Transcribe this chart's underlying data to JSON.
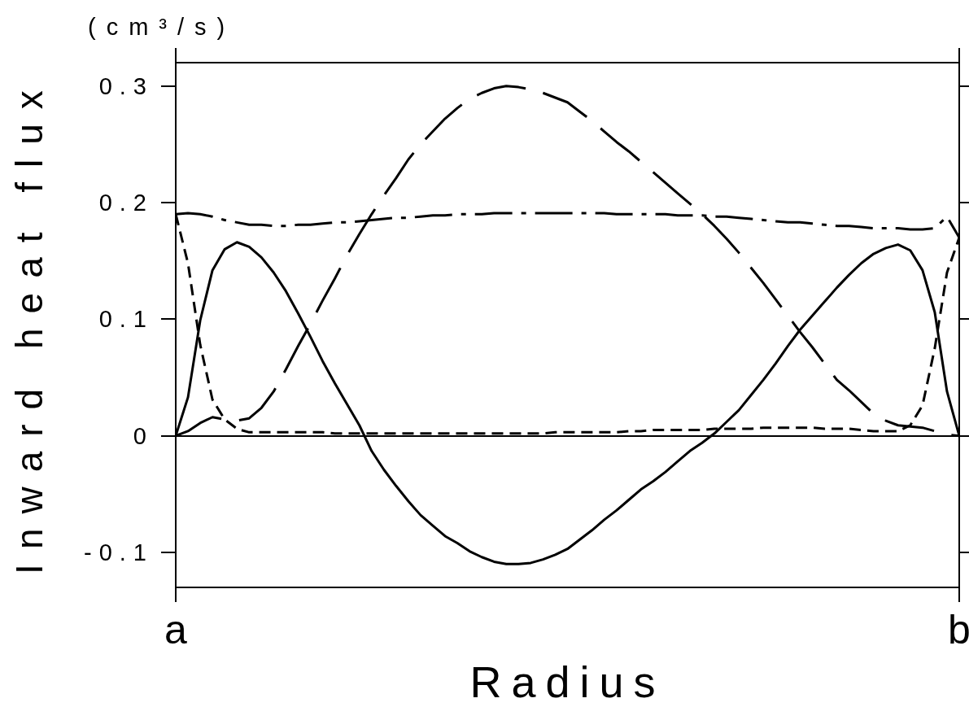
{
  "chart_data": {
    "type": "line",
    "xlabel": "Radius",
    "ylabel": "Inward heat flux",
    "annotations": [
      "(cm³/s)"
    ],
    "categories": [
      "a",
      null,
      null,
      null,
      null,
      null,
      null,
      null,
      null,
      null,
      null,
      null,
      null,
      null,
      null,
      null,
      null,
      null,
      null,
      null,
      null,
      null,
      null,
      null,
      null,
      null,
      null,
      null,
      null,
      null,
      null,
      null,
      null,
      null,
      null,
      null,
      null,
      null,
      null,
      null,
      null,
      null,
      null,
      null,
      null,
      null,
      null,
      null,
      null,
      null,
      null,
      null,
      null,
      null,
      null,
      null,
      null,
      null,
      null,
      null,
      null,
      null,
      null,
      null,
      "b"
    ],
    "ylim": [
      -0.13,
      0.32
    ],
    "yticks": [
      -0.1,
      0,
      0.1,
      0.2,
      0.3
    ],
    "ref_lines": [
      {
        "axis": "y",
        "value": 0,
        "color": "#000000"
      }
    ],
    "marker": "none",
    "series": [
      {
        "color": "#000000",
        "line_style": "solid",
        "values": [
          0,
          0.033,
          0.099,
          0.142,
          0.16,
          0.166,
          0.162,
          0.153,
          0.14,
          0.124,
          0.105,
          0.085,
          0.064,
          0.045,
          0.027,
          0.009,
          -0.013,
          -0.029,
          -0.043,
          -0.056,
          -0.068,
          -0.077,
          -0.086,
          -0.092,
          -0.099,
          -0.104,
          -0.108,
          -0.11,
          -0.11,
          -0.109,
          -0.106,
          -0.102,
          -0.097,
          -0.089,
          -0.081,
          -0.072,
          -0.064,
          -0.055,
          -0.046,
          -0.039,
          -0.031,
          -0.022,
          -0.013,
          -0.006,
          0.002,
          0.012,
          0.022,
          0.035,
          0.048,
          0.062,
          0.077,
          0.091,
          0.103,
          0.115,
          0.127,
          0.138,
          0.148,
          0.156,
          0.161,
          0.164,
          0.159,
          0.142,
          0.106,
          0.038,
          0
        ]
      },
      {
        "color": "#000000",
        "line_style": "longdash",
        "values": [
          0,
          0.004,
          0.011,
          0.016,
          0.014,
          0.013,
          0.015,
          0.024,
          0.038,
          0.057,
          0.077,
          0.096,
          0.116,
          0.135,
          0.155,
          0.173,
          0.19,
          0.206,
          0.221,
          0.237,
          0.25,
          0.261,
          0.272,
          0.281,
          0.289,
          0.294,
          0.298,
          0.3,
          0.299,
          0.297,
          0.294,
          0.29,
          0.286,
          0.278,
          0.27,
          0.261,
          0.252,
          0.244,
          0.235,
          0.226,
          0.217,
          0.208,
          0.199,
          0.19,
          0.18,
          0.169,
          0.157,
          0.144,
          0.131,
          0.117,
          0.103,
          0.089,
          0.076,
          0.062,
          0.048,
          0.039,
          0.029,
          0.019,
          0.013,
          0.009,
          0.008,
          0.007,
          0.004,
          0.001,
          0
        ]
      },
      {
        "color": "#000000",
        "line_style": "dashed",
        "values": [
          0.19,
          0.148,
          0.078,
          0.031,
          0.014,
          0.006,
          0.003,
          0.003,
          0.003,
          0.003,
          0.003,
          0.003,
          0.003,
          0.002,
          0.002,
          0.002,
          0.002,
          0.002,
          0.002,
          0.002,
          0.002,
          0.002,
          0.002,
          0.002,
          0.002,
          0.002,
          0.002,
          0.002,
          0.002,
          0.002,
          0.002,
          0.003,
          0.003,
          0.003,
          0.003,
          0.003,
          0.003,
          0.004,
          0.004,
          0.005,
          0.005,
          0.005,
          0.005,
          0.005,
          0.006,
          0.006,
          0.006,
          0.006,
          0.007,
          0.007,
          0.007,
          0.007,
          0.007,
          0.006,
          0.006,
          0.006,
          0.005,
          0.004,
          0.004,
          0.004,
          0.009,
          0.026,
          0.075,
          0.14,
          0.17
        ]
      },
      {
        "color": "#000000",
        "line_style": "dashdot",
        "values": [
          0.19,
          0.191,
          0.19,
          0.188,
          0.185,
          0.183,
          0.181,
          0.181,
          0.18,
          0.18,
          0.181,
          0.181,
          0.182,
          0.183,
          0.183,
          0.184,
          0.185,
          0.186,
          0.187,
          0.187,
          0.188,
          0.189,
          0.189,
          0.19,
          0.19,
          0.19,
          0.191,
          0.191,
          0.191,
          0.191,
          0.191,
          0.191,
          0.191,
          0.191,
          0.191,
          0.191,
          0.19,
          0.19,
          0.19,
          0.19,
          0.19,
          0.189,
          0.189,
          0.189,
          0.188,
          0.188,
          0.187,
          0.186,
          0.185,
          0.184,
          0.183,
          0.183,
          0.182,
          0.181,
          0.18,
          0.18,
          0.179,
          0.178,
          0.178,
          0.178,
          0.177,
          0.177,
          0.178,
          0.188,
          0.17
        ]
      }
    ]
  }
}
